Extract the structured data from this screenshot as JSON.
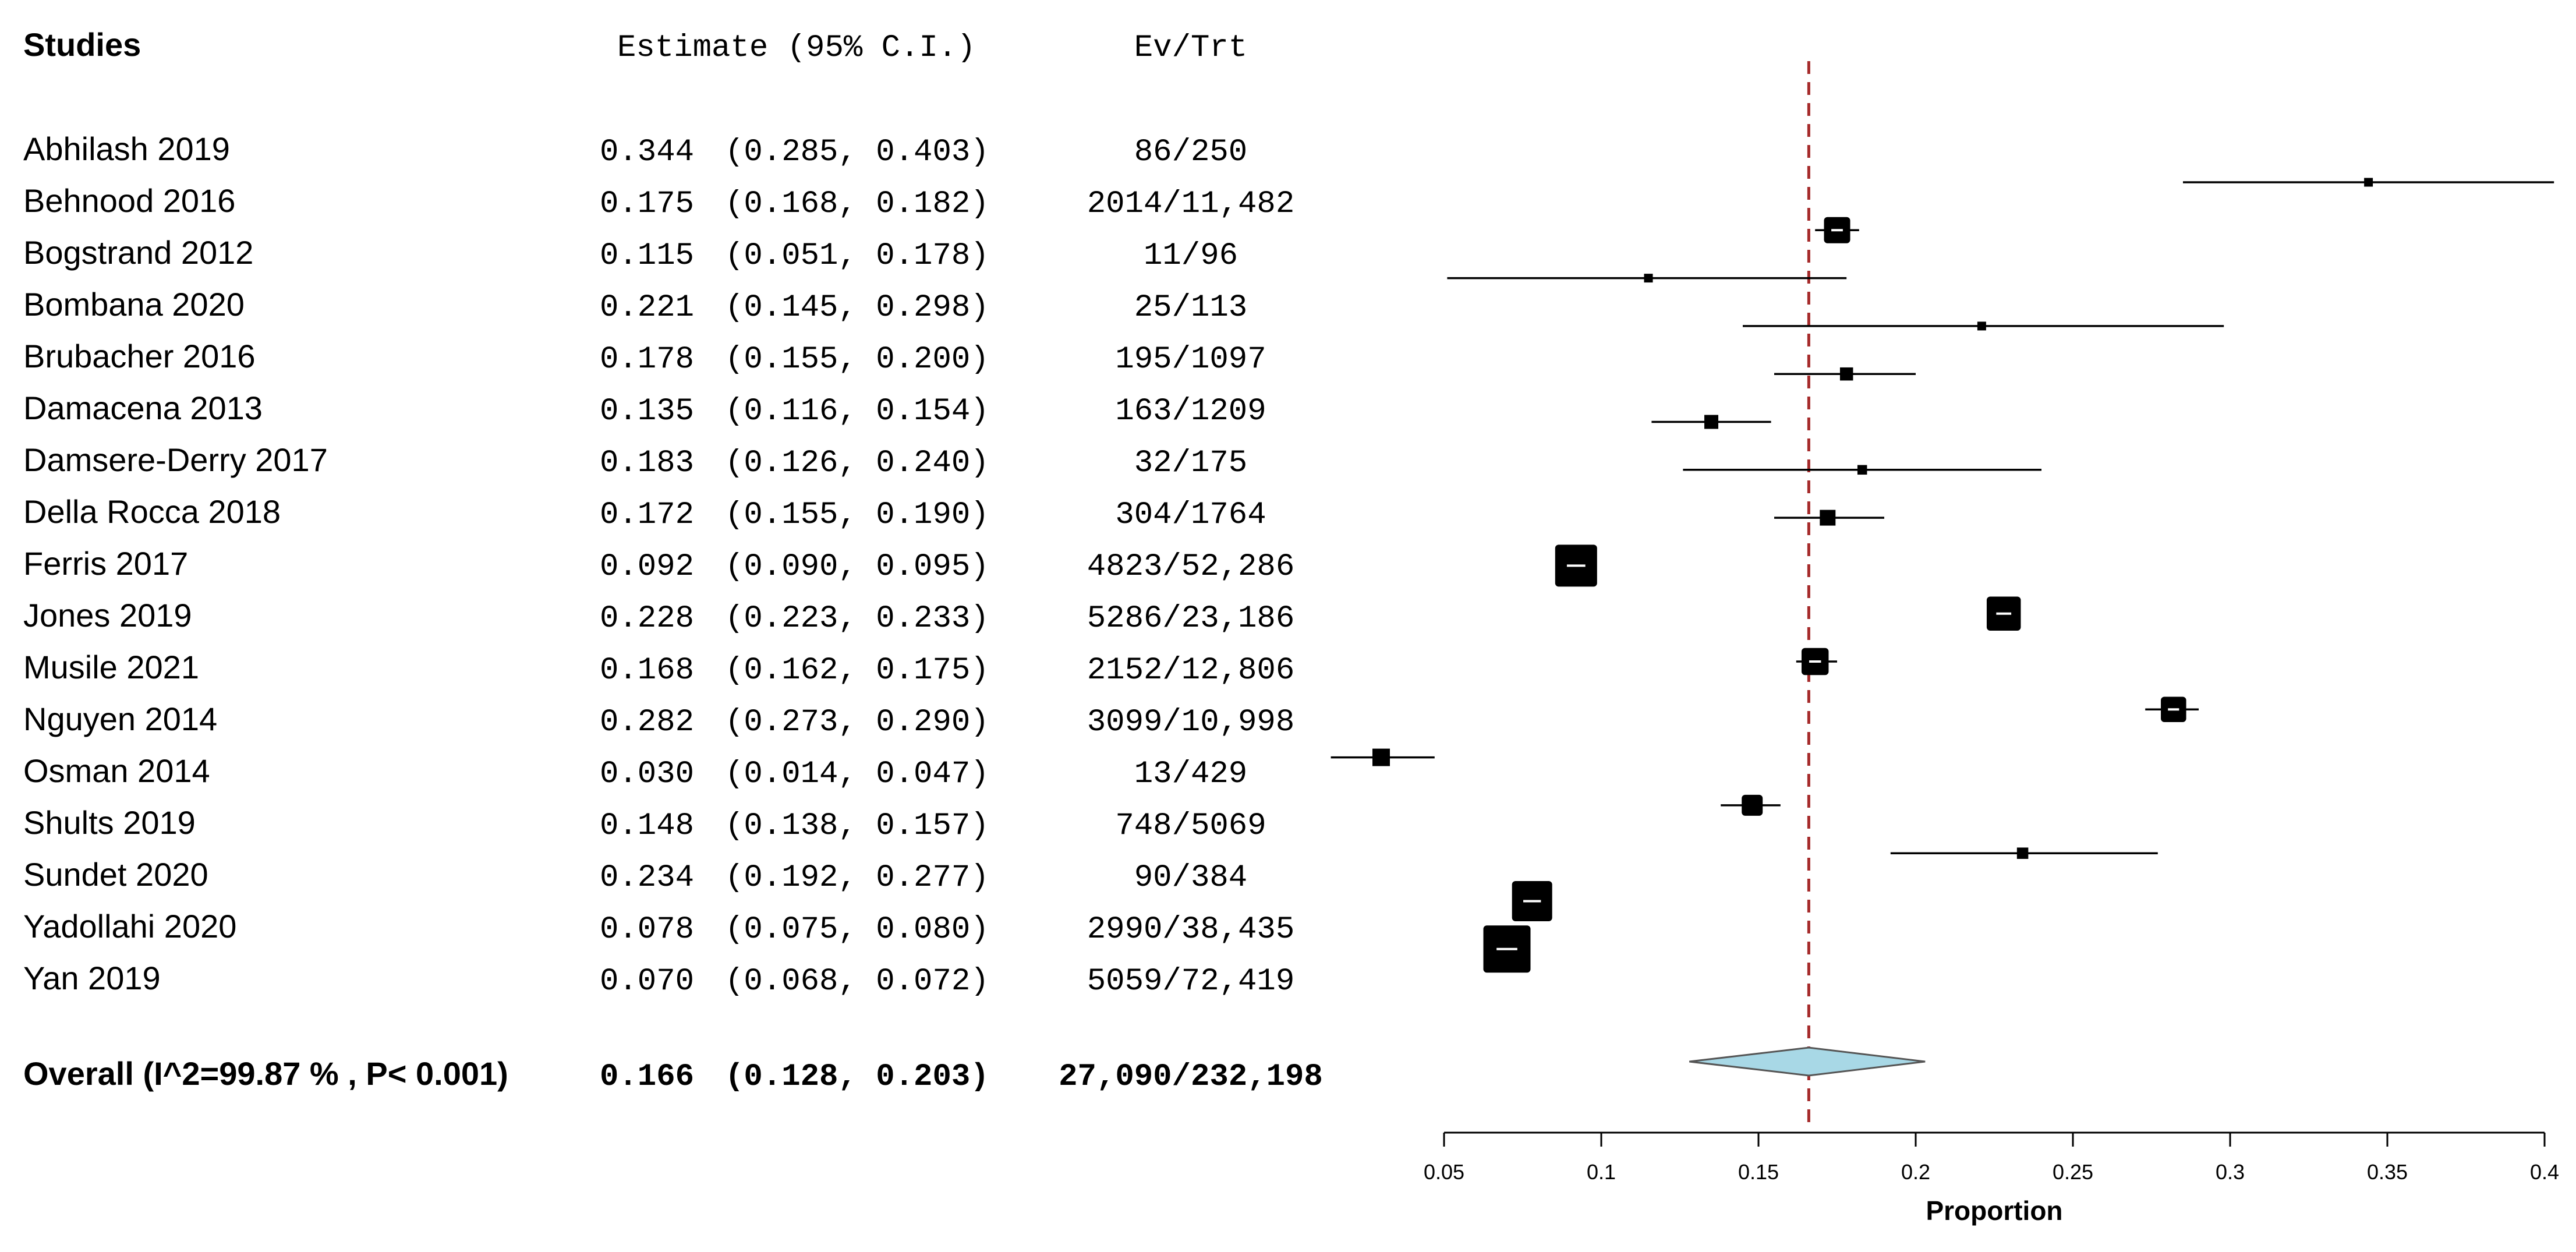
{
  "chart_data": {
    "type": "forest",
    "headers": {
      "studies": "Studies",
      "estimate": "Estimate (95% C.I.)",
      "events": "Ev/Trt"
    },
    "studies": [
      {
        "name": "Abhilash 2019",
        "est_text": "0.344",
        "ci_text": "(0.285, 0.403)",
        "events": "86/250",
        "est": 0.344,
        "lo": 0.285,
        "hi": 0.403,
        "weight": 1
      },
      {
        "name": "Behnood 2016",
        "est_text": "0.175",
        "ci_text": "(0.168, 0.182)",
        "events": "2014/11,482",
        "est": 0.175,
        "lo": 0.168,
        "hi": 0.182,
        "weight": 3
      },
      {
        "name": "Bogstrand 2012",
        "est_text": "0.115",
        "ci_text": "(0.051, 0.178)",
        "events": "11/96",
        "est": 0.115,
        "lo": 0.051,
        "hi": 0.178,
        "weight": 1
      },
      {
        "name": "Bombana 2020",
        "est_text": "0.221",
        "ci_text": "(0.145, 0.298)",
        "events": "25/113",
        "est": 0.221,
        "lo": 0.145,
        "hi": 0.298,
        "weight": 1
      },
      {
        "name": "Brubacher 2016",
        "est_text": "0.178",
        "ci_text": "(0.155, 0.200)",
        "events": "195/1097",
        "est": 0.178,
        "lo": 0.155,
        "hi": 0.2,
        "weight": 1.5
      },
      {
        "name": "Damacena 2013",
        "est_text": "0.135",
        "ci_text": "(0.116, 0.154)",
        "events": "163/1209",
        "est": 0.135,
        "lo": 0.116,
        "hi": 0.154,
        "weight": 1.6
      },
      {
        "name": "Damsere-Derry 2017",
        "est_text": "0.183",
        "ci_text": "(0.126, 0.240)",
        "events": "32/175",
        "est": 0.183,
        "lo": 0.126,
        "hi": 0.24,
        "weight": 1.1
      },
      {
        "name": "Della Rocca 2018",
        "est_text": "0.172",
        "ci_text": "(0.155, 0.190)",
        "events": "304/1764",
        "est": 0.172,
        "lo": 0.155,
        "hi": 0.19,
        "weight": 1.8
      },
      {
        "name": "Ferris 2017",
        "est_text": "0.092",
        "ci_text": "(0.090, 0.095)",
        "events": "4823/52,286",
        "est": 0.092,
        "lo": 0.09,
        "hi": 0.095,
        "weight": 4.8
      },
      {
        "name": "Jones 2019",
        "est_text": "0.228",
        "ci_text": "(0.223, 0.233)",
        "events": "5286/23,186",
        "est": 0.228,
        "lo": 0.223,
        "hi": 0.233,
        "weight": 3.9
      },
      {
        "name": "Musile 2021",
        "est_text": "0.168",
        "ci_text": "(0.162, 0.175)",
        "events": "2152/12,806",
        "est": 0.168,
        "lo": 0.162,
        "hi": 0.175,
        "weight": 3.1
      },
      {
        "name": "Nguyen 2014",
        "est_text": "0.282",
        "ci_text": "(0.273, 0.290)",
        "events": "3099/10,998",
        "est": 0.282,
        "lo": 0.273,
        "hi": 0.29,
        "weight": 2.9
      },
      {
        "name": "Osman 2014",
        "est_text": "0.030",
        "ci_text": "(0.014, 0.047)",
        "events": "13/429",
        "est": 0.03,
        "lo": 0.014,
        "hi": 0.047,
        "weight": 2
      },
      {
        "name": "Shults 2019",
        "est_text": "0.148",
        "ci_text": "(0.138, 0.157)",
        "events": "748/5069",
        "est": 0.148,
        "lo": 0.138,
        "hi": 0.157,
        "weight": 2.4
      },
      {
        "name": "Sundet 2020",
        "est_text": "0.234",
        "ci_text": "(0.192, 0.277)",
        "events": "90/384",
        "est": 0.234,
        "lo": 0.192,
        "hi": 0.277,
        "weight": 1.3
      },
      {
        "name": "Yadollahi 2020",
        "est_text": "0.078",
        "ci_text": "(0.075, 0.080)",
        "events": "2990/38,435",
        "est": 0.078,
        "lo": 0.075,
        "hi": 0.08,
        "weight": 4.6
      },
      {
        "name": "Yan 2019",
        "est_text": "0.070",
        "ci_text": "(0.068, 0.072)",
        "events": "5059/72,419",
        "est": 0.07,
        "lo": 0.068,
        "hi": 0.072,
        "weight": 5.4
      }
    ],
    "overall": {
      "label": "Overall (I^2=99.87 % , P< 0.001)",
      "est_text": "0.166",
      "ci_text": "(0.128, 0.203)",
      "events": "27,090/232,198",
      "est": 0.166,
      "lo": 0.128,
      "hi": 0.203
    },
    "reference_line": 0.166,
    "xlim": [
      0.05,
      0.4
    ],
    "xticks": [
      0.05,
      0.1,
      0.15,
      0.2,
      0.25,
      0.3,
      0.35,
      0.4
    ],
    "xtick_labels": [
      "0.05",
      "0.1",
      "0.15",
      "0.2",
      "0.25",
      "0.3",
      "0.35",
      "0.4"
    ],
    "xlabel": "Proportion",
    "colors": {
      "marker": "#000000",
      "diamond_fill": "#a8d8e6",
      "diamond_stroke": "#555555",
      "reference_line": "#a52a2a",
      "axis": "#000000"
    }
  }
}
